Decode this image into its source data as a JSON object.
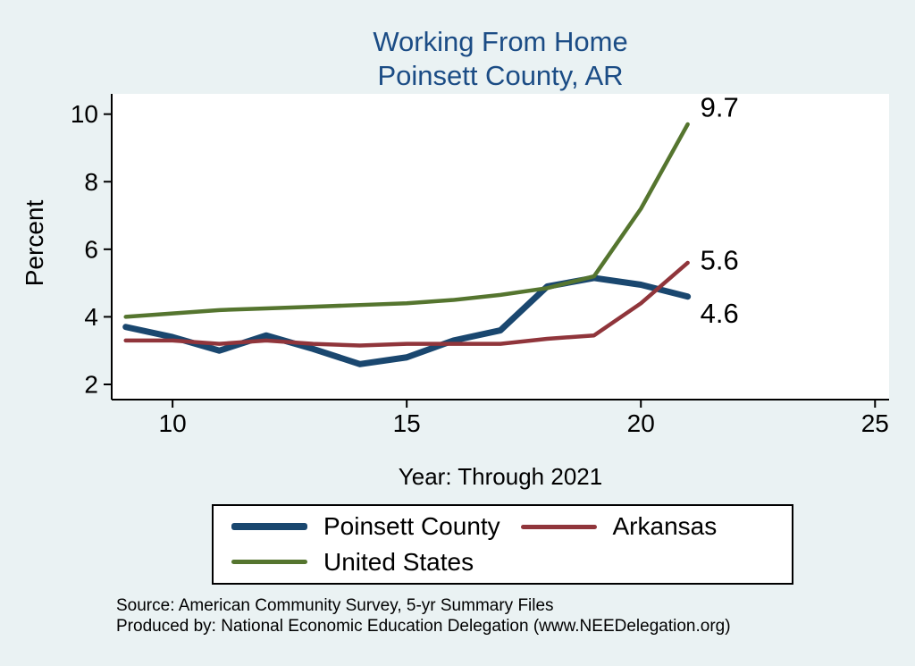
{
  "title": {
    "line1": "Working From Home",
    "line2": "Poinsett County, AR",
    "color": "#1b4c85"
  },
  "chart_data": {
    "type": "line",
    "title": "Working From Home Poinsett County, AR",
    "xlabel": "Year: Through 2021",
    "ylabel": "Percent",
    "x": [
      9,
      10,
      11,
      12,
      13,
      14,
      15,
      16,
      17,
      18,
      19,
      20,
      21
    ],
    "series": [
      {
        "name": "Poinsett County",
        "color": "#1a476f",
        "width": 7,
        "values": [
          3.7,
          3.4,
          3.0,
          3.45,
          3.05,
          2.6,
          2.8,
          3.3,
          3.6,
          4.9,
          5.15,
          4.95,
          4.6
        ],
        "end_label": "4.6"
      },
      {
        "name": "Arkansas",
        "color": "#90353b",
        "width": 4.5,
        "values": [
          3.3,
          3.3,
          3.2,
          3.3,
          3.2,
          3.15,
          3.2,
          3.2,
          3.2,
          3.35,
          3.45,
          4.4,
          5.6
        ],
        "end_label": "5.6"
      },
      {
        "name": "United States",
        "color": "#55752f",
        "width": 4.5,
        "values": [
          4.0,
          4.1,
          4.2,
          4.25,
          4.3,
          4.35,
          4.4,
          4.5,
          4.65,
          4.85,
          5.2,
          7.2,
          9.7
        ],
        "end_label": "9.7"
      }
    ],
    "x_ticks": [
      10,
      15,
      20,
      25
    ],
    "y_ticks": [
      2,
      4,
      6,
      8,
      10
    ],
    "xlim": [
      8.7,
      25.3
    ],
    "ylim": [
      1.55,
      10.6
    ],
    "grid": false,
    "legend_position": "bottom",
    "plot_background": "#ffffff",
    "page_background": "#eaf2f3"
  },
  "legend": {
    "entries": [
      "Poinsett County",
      "Arkansas",
      "United States"
    ]
  },
  "footer": {
    "line1": "Source: American Community Survey, 5-yr Summary Files",
    "line2": "Produced by: National Economic Education Delegation (www.NEEDelegation.org)"
  }
}
